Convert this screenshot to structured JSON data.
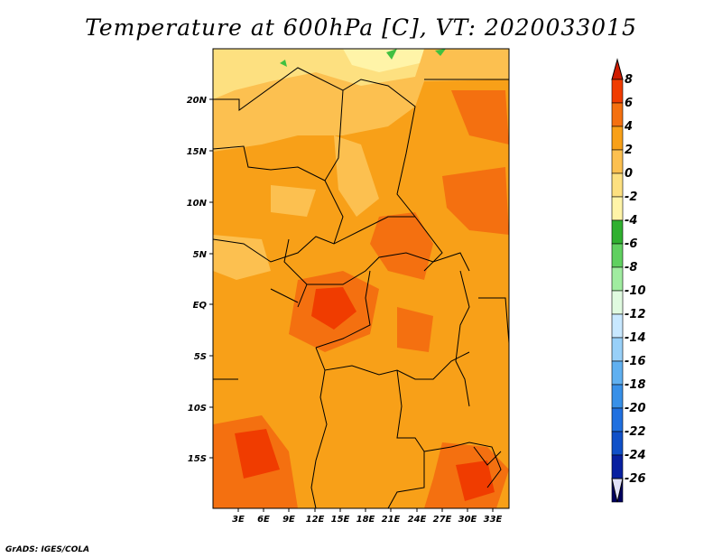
{
  "title": "Temperature at 600hPa [C], VT: 2020033015",
  "footer": "GrADS: IGES/COLA",
  "map": {
    "lat_labels": [
      "20N",
      "15N",
      "10N",
      "5N",
      "EQ",
      "5S",
      "10S",
      "15S"
    ],
    "lon_labels": [
      "3E",
      "6E",
      "9E",
      "12E",
      "15E",
      "18E",
      "21E",
      "24E",
      "27E",
      "30E",
      "33E"
    ]
  },
  "colorbar": {
    "labels": [
      "8",
      "6",
      "4",
      "2",
      "0",
      "-2",
      "-4",
      "-6",
      "-8",
      "-10",
      "-12",
      "-14",
      "-16",
      "-18",
      "-20",
      "-22",
      "-24",
      "-26"
    ],
    "colors": [
      "#d01c00",
      "#f03c00",
      "#f47010",
      "#f8a018",
      "#fcc050",
      "#fde080",
      "#fff4a8",
      "#30b030",
      "#60d060",
      "#a0eca0",
      "#e0fae0",
      "#c8e8ff",
      "#98d0f8",
      "#60b0f0",
      "#3890e8",
      "#2070e0",
      "#1050c8",
      "#0820a0",
      "#000060",
      "#e0e0f8"
    ]
  }
}
